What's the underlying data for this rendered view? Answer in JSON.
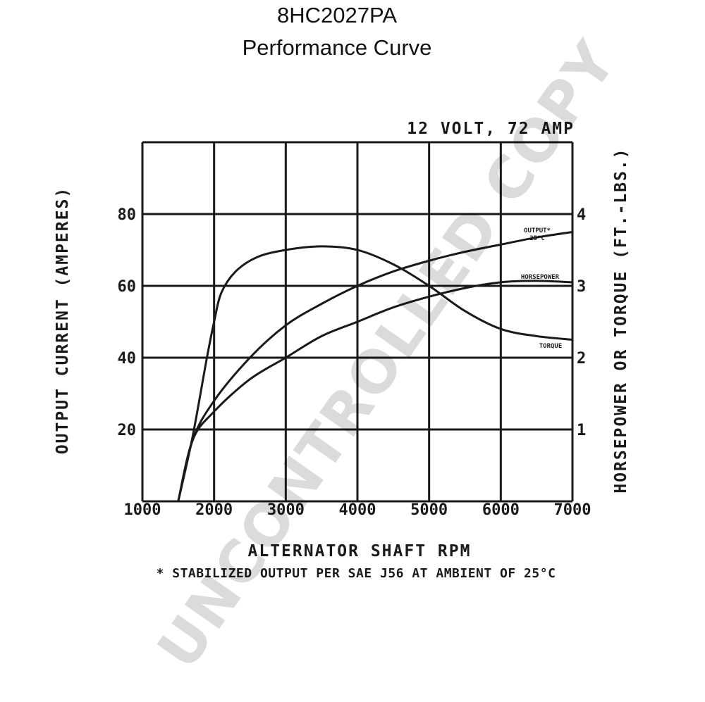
{
  "header": {
    "title": "8HC2027PA",
    "subtitle": "Performance Curve"
  },
  "watermark": "UNCONTROLLED COPY",
  "chart_data": {
    "type": "line",
    "rating": "12 VOLT, 72 AMP",
    "xlabel": "ALTERNATOR SHAFT RPM",
    "ylabel": "OUTPUT CURRENT (AMPERES)",
    "y2label": "HORSEPOWER OR TORQUE (FT.-LBS.)",
    "note": "* STABILIZED OUTPUT PER SAE J56 AT AMBIENT OF 25°C",
    "xlim": [
      1000,
      7000
    ],
    "ylim": [
      0,
      100
    ],
    "y2lim": [
      0,
      5
    ],
    "x_ticks": [
      "1000",
      "2000",
      "3000",
      "4000",
      "5000",
      "6000",
      "7000"
    ],
    "y_ticks": [
      "20",
      "40",
      "60",
      "80"
    ],
    "y2_ticks": [
      "1",
      "2",
      "3",
      "4"
    ],
    "grid": true,
    "series": [
      {
        "name": "OUTPUT* 25°C",
        "axis": "left",
        "x": [
          1500,
          1700,
          2000,
          2500,
          3000,
          3500,
          4000,
          4500,
          5000,
          5500,
          6000,
          6500,
          7000
        ],
        "y": [
          0,
          17,
          28,
          40,
          49,
          55,
          60,
          64,
          67,
          69.5,
          71.5,
          73.5,
          75
        ]
      },
      {
        "name": "HORSEPOWER",
        "axis": "right",
        "x": [
          1500,
          1700,
          2000,
          2500,
          3000,
          3500,
          4000,
          4500,
          5000,
          5500,
          6000,
          6500,
          7000
        ],
        "y": [
          0,
          0.85,
          1.25,
          1.7,
          2.0,
          2.3,
          2.5,
          2.7,
          2.85,
          2.97,
          3.05,
          3.07,
          3.05
        ]
      },
      {
        "name": "TORQUE",
        "axis": "right",
        "x": [
          1500,
          1700,
          1900,
          2000,
          2100,
          2300,
          2600,
          3000,
          3500,
          4000,
          4500,
          5000,
          5500,
          6000,
          6500,
          7000
        ],
        "y": [
          0,
          0.9,
          2.0,
          2.5,
          2.9,
          3.2,
          3.4,
          3.5,
          3.55,
          3.5,
          3.3,
          3.0,
          2.65,
          2.4,
          2.3,
          2.25
        ]
      }
    ]
  }
}
